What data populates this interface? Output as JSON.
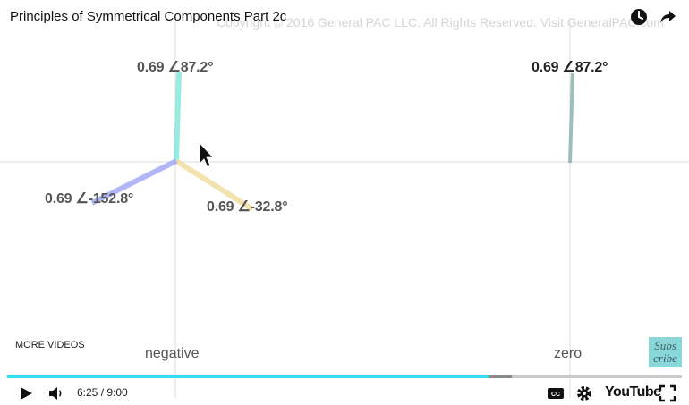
{
  "video": {
    "title": "Principles of Symmetrical Components Part 2c",
    "copyright": "Copyright © 2016 General PAC LLC. All Rights Reserved. Visit GeneralPAC.com"
  },
  "phasors": {
    "negative": {
      "axis_label": "negative",
      "a_label": "0.69 ∠87.2°",
      "b_label": "0.69 ∠-32.8°",
      "c_label": "0.69 ∠-152.8°"
    },
    "zero": {
      "axis_label": "zero",
      "label": "0.69 ∠87.2°"
    },
    "colors": {
      "a": "#7fe8dc",
      "b": "#f0dc9a",
      "c": "#9ea6f5",
      "zero": "#93b9b5",
      "axis": "#dcdcdc"
    }
  },
  "overlay": {
    "more_videos": "MORE VIDEOS",
    "subscribe_line1": "Subs",
    "subscribe_line2": "cribe"
  },
  "player": {
    "time": "6:25 / 9:00",
    "youtube_label": "YouTube",
    "progress_fraction": 0.714,
    "buffered_fraction": 0.748,
    "progress_color": "#32e0f0"
  },
  "icons": [
    "clock-icon",
    "share-icon",
    "play-icon",
    "volume-icon",
    "captions-icon",
    "settings-icon",
    "fullscreen-icon",
    "cursor-icon"
  ]
}
